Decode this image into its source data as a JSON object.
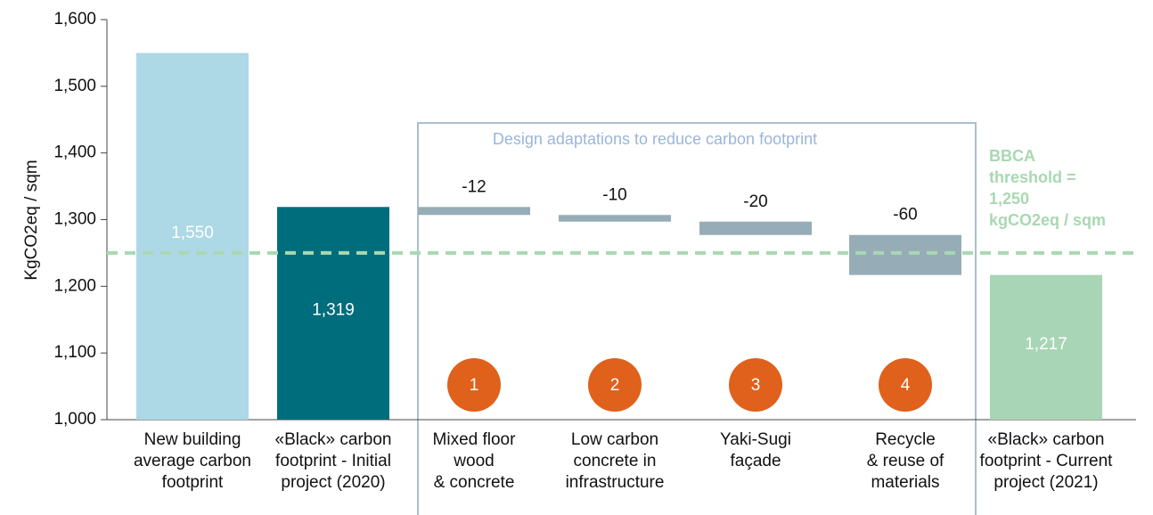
{
  "chart_data": {
    "type": "waterfall",
    "ylabel": "KgCO2eq / sqm",
    "categories": [
      "New building\naverage carbon\nfootprint",
      "«Black» carbon\nfootprint - Initial\nproject (2020)",
      "Mixed floor\nwood\n& concrete",
      "Low carbon\nconcrete in\ninfrastructure",
      "Yaki-Sugi\nfaçade",
      "Recycle\n& reuse of\nmaterials",
      "«Black» carbon\nfootprint - Current\nproject (2021)"
    ],
    "measure": [
      "absolute",
      "absolute",
      "relative",
      "relative",
      "relative",
      "relative",
      "absolute"
    ],
    "values": [
      1550,
      1319,
      -12,
      -10,
      -20,
      -60,
      1217
    ],
    "value_labels": [
      "1,550",
      "1,319",
      "-12",
      "-10",
      "-20",
      "-60",
      "1,217"
    ],
    "colors": [
      "#add8e6",
      "#006d7d",
      "#96adb7",
      "#96adb7",
      "#96adb7",
      "#96adb7",
      "#a8d5b5"
    ],
    "ylim": [
      1000,
      1600
    ],
    "yticks": [
      {
        "value": 1000,
        "label": "1,000"
      },
      {
        "value": 1100,
        "label": "1,100"
      },
      {
        "value": 1200,
        "label": "1,200"
      },
      {
        "value": 1300,
        "label": "1,300"
      },
      {
        "value": 1400,
        "label": "1,400"
      },
      {
        "value": 1500,
        "label": "1,500"
      },
      {
        "value": 1600,
        "label": "1,600"
      }
    ],
    "threshold": {
      "value": 1250,
      "label": "BBCA\nthreshold =\n1,250\nkgCO2eq / sqm",
      "color": "#a8d8b2"
    },
    "group_box": {
      "label": "Design adaptations to reduce carbon footprint",
      "color": "#a9c0cc",
      "text_color": "#9bb5d9"
    },
    "badges": [
      "1",
      "2",
      "3",
      "4"
    ],
    "badge_color": "#e0611b"
  }
}
